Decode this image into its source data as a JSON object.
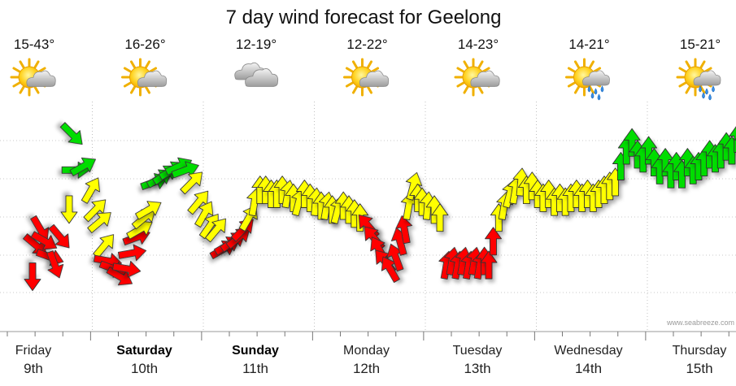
{
  "chart_data": {
    "type": "line",
    "title": "7 day wind forecast for Geelong",
    "credit": "www.seabreeze.com",
    "days": [
      {
        "name": "Friday",
        "date": "9th",
        "temp": "15-43°",
        "icon": "partly-sunny-icon",
        "bold": false
      },
      {
        "name": "Saturday",
        "date": "10th",
        "temp": "16-26°",
        "icon": "partly-sunny-icon",
        "bold": true
      },
      {
        "name": "Sunday",
        "date": "11th",
        "temp": "12-19°",
        "icon": "cloudy-icon",
        "bold": true
      },
      {
        "name": "Monday",
        "date": "12th",
        "temp": "12-22°",
        "icon": "partly-sunny-icon",
        "bold": false
      },
      {
        "name": "Tuesday",
        "date": "13th",
        "temp": "14-23°",
        "icon": "partly-sunny-icon",
        "bold": false
      },
      {
        "name": "Wednesday",
        "date": "14th",
        "temp": "14-21°",
        "icon": "sun-showers-icon",
        "bold": false
      },
      {
        "name": "Thursday",
        "date": "15th",
        "temp": "15-21°",
        "icon": "sun-showers-icon",
        "bold": false
      }
    ],
    "ylim": [
      0,
      5
    ],
    "grid": true,
    "color_scale": {
      "red": "#ff0000",
      "yellow": "#ffff00",
      "green": "#00dd00"
    },
    "series": [
      {
        "x": 0.0,
        "y": 0.4,
        "c": "red",
        "d": 180
      },
      {
        "x": 0.03,
        "y": 1.2,
        "c": "red",
        "d": 130
      },
      {
        "x": 0.07,
        "y": 1.6,
        "c": "red",
        "d": 150
      },
      {
        "x": 0.11,
        "y": 1.3,
        "c": "red",
        "d": 120
      },
      {
        "x": 0.16,
        "y": 0.9,
        "c": "red",
        "d": 110
      },
      {
        "x": 0.2,
        "y": 0.7,
        "c": "red",
        "d": 160
      },
      {
        "x": 0.25,
        "y": 1.4,
        "c": "red",
        "d": 140
      },
      {
        "x": 0.33,
        "y": 2.1,
        "c": "yellow",
        "d": 180
      },
      {
        "x": 0.36,
        "y": 4.0,
        "c": "green",
        "d": 135
      },
      {
        "x": 0.39,
        "y": 3.1,
        "c": "green",
        "d": 90
      },
      {
        "x": 0.46,
        "y": 3.2,
        "c": "green",
        "d": 60
      },
      {
        "x": 0.53,
        "y": 2.6,
        "c": "yellow",
        "d": 30
      },
      {
        "x": 0.57,
        "y": 2.1,
        "c": "yellow",
        "d": 45
      },
      {
        "x": 0.61,
        "y": 1.8,
        "c": "yellow",
        "d": 50
      },
      {
        "x": 0.65,
        "y": 1.2,
        "c": "yellow",
        "d": 40
      },
      {
        "x": 0.68,
        "y": 0.8,
        "c": "red",
        "d": 100
      },
      {
        "x": 0.73,
        "y": 0.6,
        "c": "red",
        "d": 110
      },
      {
        "x": 0.79,
        "y": 0.4,
        "c": "red",
        "d": 120
      },
      {
        "x": 0.85,
        "y": 0.6,
        "c": "red",
        "d": 100
      },
      {
        "x": 0.9,
        "y": 1.0,
        "c": "red",
        "d": 80
      },
      {
        "x": 0.94,
        "y": 1.4,
        "c": "red",
        "d": 70
      },
      {
        "x": 0.97,
        "y": 1.6,
        "c": "yellow",
        "d": 60
      },
      {
        "x": 1.01,
        "y": 1.9,
        "c": "yellow",
        "d": 50
      },
      {
        "x": 1.05,
        "y": 2.1,
        "c": "yellow",
        "d": 60
      },
      {
        "x": 1.1,
        "y": 2.8,
        "c": "green",
        "d": 70
      },
      {
        "x": 1.15,
        "y": 2.9,
        "c": "green",
        "d": 60
      },
      {
        "x": 1.2,
        "y": 3.0,
        "c": "green",
        "d": 55
      },
      {
        "x": 1.26,
        "y": 3.1,
        "c": "green",
        "d": 60
      },
      {
        "x": 1.32,
        "y": 3.2,
        "c": "green",
        "d": 65
      },
      {
        "x": 1.38,
        "y": 3.1,
        "c": "green",
        "d": 70
      },
      {
        "x": 1.44,
        "y": 2.8,
        "c": "yellow",
        "d": 45
      },
      {
        "x": 1.5,
        "y": 2.3,
        "c": "yellow",
        "d": 40
      },
      {
        "x": 1.55,
        "y": 2.0,
        "c": "yellow",
        "d": 30
      },
      {
        "x": 1.6,
        "y": 1.7,
        "c": "yellow",
        "d": 35
      },
      {
        "x": 1.66,
        "y": 1.6,
        "c": "yellow",
        "d": 40
      },
      {
        "x": 1.72,
        "y": 1.1,
        "c": "red",
        "d": 60
      },
      {
        "x": 1.76,
        "y": 1.2,
        "c": "red",
        "d": 60
      },
      {
        "x": 1.81,
        "y": 1.3,
        "c": "red",
        "d": 55
      },
      {
        "x": 1.86,
        "y": 1.4,
        "c": "red",
        "d": 50
      },
      {
        "x": 1.9,
        "y": 1.6,
        "c": "red",
        "d": 45
      },
      {
        "x": 1.95,
        "y": 1.9,
        "c": "yellow",
        "d": 30
      },
      {
        "x": 2.0,
        "y": 2.3,
        "c": "yellow",
        "d": 10
      },
      {
        "x": 2.05,
        "y": 2.6,
        "c": "yellow",
        "d": 0
      },
      {
        "x": 2.1,
        "y": 2.6,
        "c": "yellow",
        "d": 0
      },
      {
        "x": 2.15,
        "y": 2.5,
        "c": "yellow",
        "d": 0
      },
      {
        "x": 2.2,
        "y": 2.5,
        "c": "yellow",
        "d": 0
      },
      {
        "x": 2.25,
        "y": 2.6,
        "c": "yellow",
        "d": 0
      },
      {
        "x": 2.3,
        "y": 2.5,
        "c": "yellow",
        "d": 10
      },
      {
        "x": 2.35,
        "y": 2.4,
        "c": "yellow",
        "d": 0
      },
      {
        "x": 2.4,
        "y": 2.3,
        "c": "yellow",
        "d": 15
      },
      {
        "x": 2.45,
        "y": 2.5,
        "c": "yellow",
        "d": 0
      },
      {
        "x": 2.5,
        "y": 2.4,
        "c": "yellow",
        "d": 0
      },
      {
        "x": 2.55,
        "y": 2.3,
        "c": "yellow",
        "d": 5
      },
      {
        "x": 2.6,
        "y": 2.2,
        "c": "yellow",
        "d": 0
      },
      {
        "x": 2.65,
        "y": 2.2,
        "c": "yellow",
        "d": 10
      },
      {
        "x": 2.7,
        "y": 2.1,
        "c": "yellow",
        "d": 0
      },
      {
        "x": 2.75,
        "y": 2.1,
        "c": "yellow",
        "d": 15
      },
      {
        "x": 2.8,
        "y": 2.2,
        "c": "yellow",
        "d": 0
      },
      {
        "x": 2.85,
        "y": 2.1,
        "c": "yellow",
        "d": 0
      },
      {
        "x": 2.9,
        "y": 2.0,
        "c": "yellow",
        "d": 0
      },
      {
        "x": 2.95,
        "y": 1.9,
        "c": "yellow",
        "d": 0
      },
      {
        "x": 3.02,
        "y": 1.7,
        "c": "red",
        "d": 320
      },
      {
        "x": 3.07,
        "y": 1.4,
        "c": "red",
        "d": 320
      },
      {
        "x": 3.12,
        "y": 1.1,
        "c": "red",
        "d": 330
      },
      {
        "x": 3.17,
        "y": 0.8,
        "c": "red",
        "d": 320
      },
      {
        "x": 3.22,
        "y": 0.6,
        "c": "red",
        "d": 330
      },
      {
        "x": 3.27,
        "y": 0.9,
        "c": "red",
        "d": 340
      },
      {
        "x": 3.31,
        "y": 1.3,
        "c": "red",
        "d": 345
      },
      {
        "x": 3.35,
        "y": 1.6,
        "c": "red",
        "d": 350
      },
      {
        "x": 3.39,
        "y": 2.2,
        "c": "yellow",
        "d": 10
      },
      {
        "x": 3.43,
        "y": 2.7,
        "c": "yellow",
        "d": 15
      },
      {
        "x": 3.47,
        "y": 2.4,
        "c": "yellow",
        "d": 0
      },
      {
        "x": 3.51,
        "y": 2.3,
        "c": "yellow",
        "d": 0
      },
      {
        "x": 3.56,
        "y": 2.2,
        "c": "yellow",
        "d": 5
      },
      {
        "x": 3.62,
        "y": 2.1,
        "c": "yellow",
        "d": 0
      },
      {
        "x": 3.67,
        "y": 1.9,
        "c": "yellow",
        "d": 0
      },
      {
        "x": 3.73,
        "y": 0.7,
        "c": "red",
        "d": 10
      },
      {
        "x": 3.78,
        "y": 0.8,
        "c": "red",
        "d": 10
      },
      {
        "x": 3.83,
        "y": 0.7,
        "c": "red",
        "d": 10
      },
      {
        "x": 3.88,
        "y": 0.8,
        "c": "red",
        "d": 10
      },
      {
        "x": 3.93,
        "y": 0.7,
        "c": "red",
        "d": 10
      },
      {
        "x": 3.98,
        "y": 0.8,
        "c": "red",
        "d": 10
      },
      {
        "x": 4.03,
        "y": 0.7,
        "c": "red",
        "d": 10
      },
      {
        "x": 4.07,
        "y": 0.8,
        "c": "red",
        "d": 0
      },
      {
        "x": 4.11,
        "y": 0.7,
        "c": "red",
        "d": 0
      },
      {
        "x": 4.15,
        "y": 1.3,
        "c": "red",
        "d": 0
      },
      {
        "x": 4.2,
        "y": 1.9,
        "c": "yellow",
        "d": 0
      },
      {
        "x": 4.25,
        "y": 2.2,
        "c": "yellow",
        "d": 10
      },
      {
        "x": 4.3,
        "y": 2.5,
        "c": "yellow",
        "d": 15
      },
      {
        "x": 4.35,
        "y": 2.6,
        "c": "yellow",
        "d": 10
      },
      {
        "x": 4.4,
        "y": 2.8,
        "c": "yellow",
        "d": 5
      },
      {
        "x": 4.45,
        "y": 2.6,
        "c": "yellow",
        "d": 0
      },
      {
        "x": 4.5,
        "y": 2.7,
        "c": "yellow",
        "d": 0
      },
      {
        "x": 4.55,
        "y": 2.5,
        "c": "yellow",
        "d": 0
      },
      {
        "x": 4.6,
        "y": 2.4,
        "c": "yellow",
        "d": 0
      },
      {
        "x": 4.65,
        "y": 2.5,
        "c": "yellow",
        "d": 0
      },
      {
        "x": 4.7,
        "y": 2.3,
        "c": "yellow",
        "d": 0
      },
      {
        "x": 4.75,
        "y": 2.4,
        "c": "yellow",
        "d": 0
      },
      {
        "x": 4.8,
        "y": 2.3,
        "c": "yellow",
        "d": 0
      },
      {
        "x": 4.85,
        "y": 2.4,
        "c": "yellow",
        "d": 0
      },
      {
        "x": 4.9,
        "y": 2.5,
        "c": "yellow",
        "d": 0
      },
      {
        "x": 4.95,
        "y": 2.4,
        "c": "yellow",
        "d": 0
      },
      {
        "x": 5.0,
        "y": 2.5,
        "c": "yellow",
        "d": 0
      },
      {
        "x": 5.05,
        "y": 2.4,
        "c": "yellow",
        "d": 0
      },
      {
        "x": 5.1,
        "y": 2.5,
        "c": "yellow",
        "d": 0
      },
      {
        "x": 5.15,
        "y": 2.6,
        "c": "yellow",
        "d": 0
      },
      {
        "x": 5.2,
        "y": 2.7,
        "c": "yellow",
        "d": 0
      },
      {
        "x": 5.25,
        "y": 2.8,
        "c": "yellow",
        "d": 0
      },
      {
        "x": 5.3,
        "y": 3.2,
        "c": "green",
        "d": 0
      },
      {
        "x": 5.35,
        "y": 3.6,
        "c": "green",
        "d": 0
      },
      {
        "x": 5.4,
        "y": 3.8,
        "c": "green",
        "d": 0
      },
      {
        "x": 5.45,
        "y": 3.5,
        "c": "green",
        "d": 0
      },
      {
        "x": 5.5,
        "y": 3.4,
        "c": "green",
        "d": 0
      },
      {
        "x": 5.55,
        "y": 3.6,
        "c": "green",
        "d": 0
      },
      {
        "x": 5.6,
        "y": 3.3,
        "c": "green",
        "d": 0
      },
      {
        "x": 5.65,
        "y": 3.1,
        "c": "green",
        "d": 0
      },
      {
        "x": 5.7,
        "y": 3.3,
        "c": "green",
        "d": 0
      },
      {
        "x": 5.75,
        "y": 3.0,
        "c": "green",
        "d": 0
      },
      {
        "x": 5.8,
        "y": 3.2,
        "c": "green",
        "d": 0
      },
      {
        "x": 5.85,
        "y": 3.0,
        "c": "green",
        "d": 0
      },
      {
        "x": 5.9,
        "y": 3.3,
        "c": "green",
        "d": 0
      },
      {
        "x": 5.95,
        "y": 3.1,
        "c": "green",
        "d": 0
      },
      {
        "x": 6.0,
        "y": 3.2,
        "c": "green",
        "d": 0
      },
      {
        "x": 6.05,
        "y": 3.3,
        "c": "green",
        "d": 0
      },
      {
        "x": 6.1,
        "y": 3.5,
        "c": "green",
        "d": 0
      },
      {
        "x": 6.15,
        "y": 3.4,
        "c": "green",
        "d": 0
      },
      {
        "x": 6.2,
        "y": 3.5,
        "c": "green",
        "d": 0
      },
      {
        "x": 6.25,
        "y": 3.7,
        "c": "green",
        "d": 0
      },
      {
        "x": 6.3,
        "y": 3.6,
        "c": "green",
        "d": 0
      },
      {
        "x": 6.35,
        "y": 3.9,
        "c": "green",
        "d": 0
      },
      {
        "x": 6.4,
        "y": 3.8,
        "c": "green",
        "d": 0
      },
      {
        "x": 6.45,
        "y": 3.9,
        "c": "green",
        "d": 0
      },
      {
        "x": 6.5,
        "y": 3.7,
        "c": "green",
        "d": 0
      },
      {
        "x": 6.55,
        "y": 3.9,
        "c": "green",
        "d": 0
      },
      {
        "x": 6.6,
        "y": 3.8,
        "c": "green",
        "d": 0
      },
      {
        "x": 6.65,
        "y": 3.6,
        "c": "green",
        "d": 0
      }
    ]
  }
}
